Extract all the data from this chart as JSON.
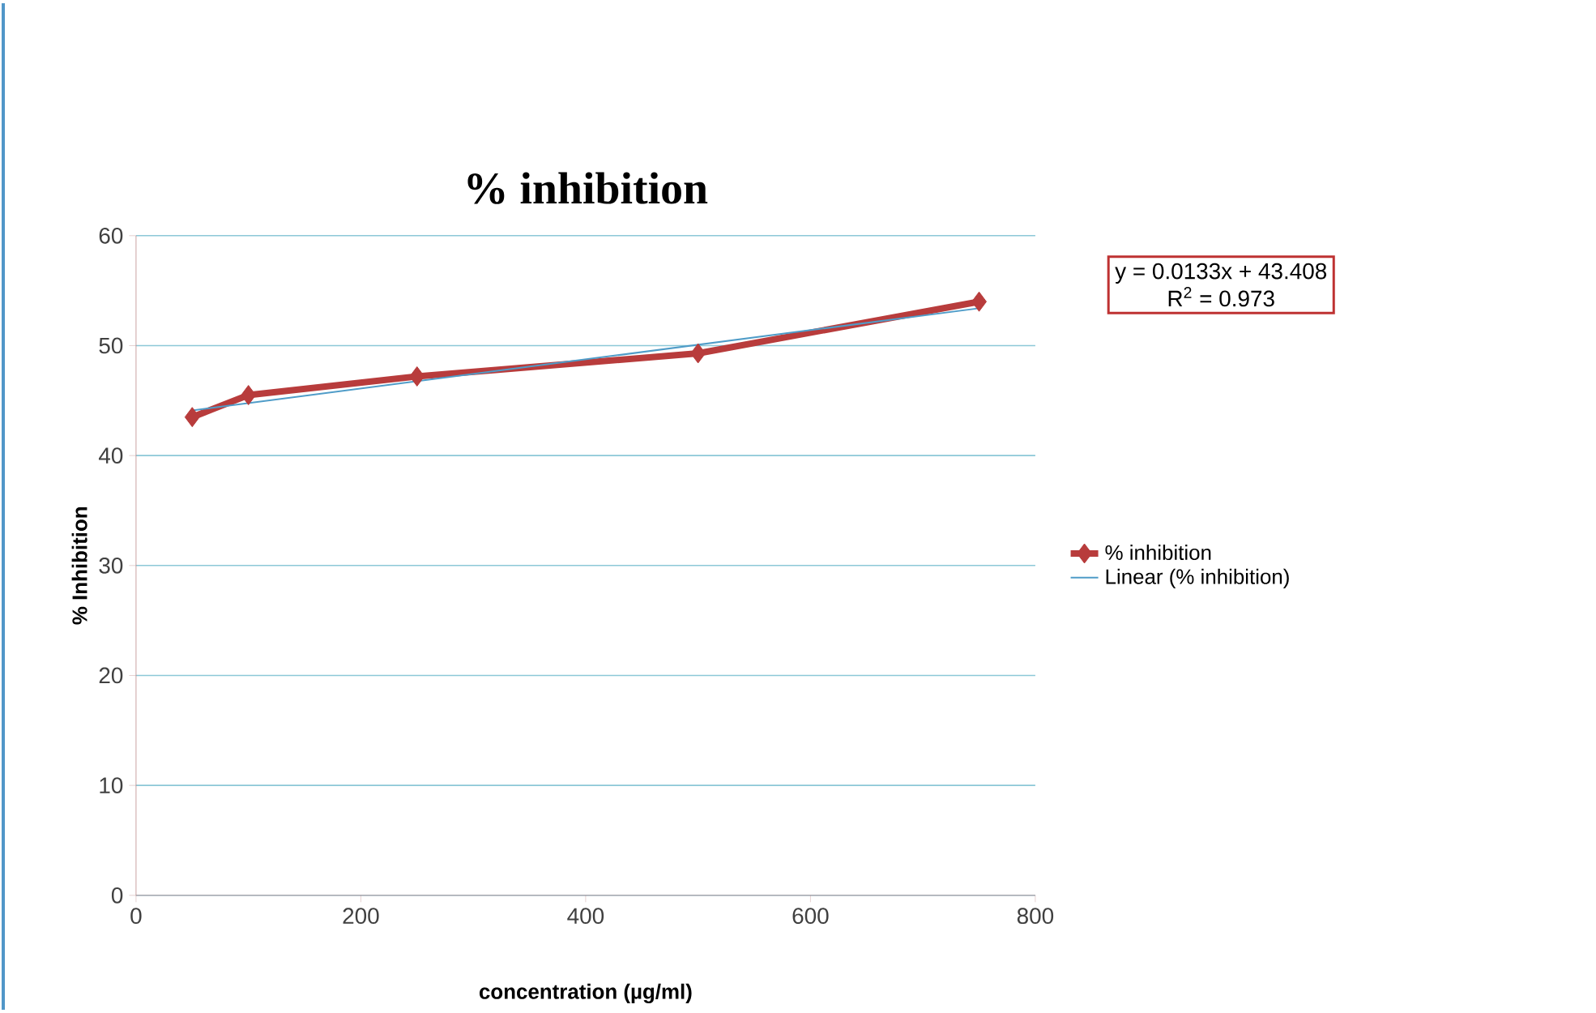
{
  "chart_data": {
    "type": "line",
    "title": "% inhibition",
    "xlabel": "concentration (µg/ml)",
    "ylabel": "% Inhibition",
    "xlim": [
      0,
      800
    ],
    "xticks": [
      0,
      200,
      400,
      600,
      800
    ],
    "ylim": [
      0,
      60
    ],
    "yticks": [
      0,
      10,
      20,
      30,
      40,
      50,
      60
    ],
    "grid": "y",
    "legend": "right",
    "marker": "diamond",
    "line_style": "solid",
    "series": [
      {
        "name": "% inhibition",
        "color": "#b83c3c",
        "x": [
          50,
          100,
          250,
          500,
          750
        ],
        "values": [
          43.5,
          45.5,
          47.2,
          49.3,
          54.0
        ]
      },
      {
        "name": "Linear (% inhibition)",
        "color": "#4f9cc8",
        "type": "line",
        "marker": "none",
        "x": [
          50,
          750
        ],
        "values": [
          44.1,
          53.4
        ]
      }
    ],
    "annotations": [
      "y = 0.0133x + 43.408",
      "R$^{2}$ = 0.973"
    ]
  }
}
